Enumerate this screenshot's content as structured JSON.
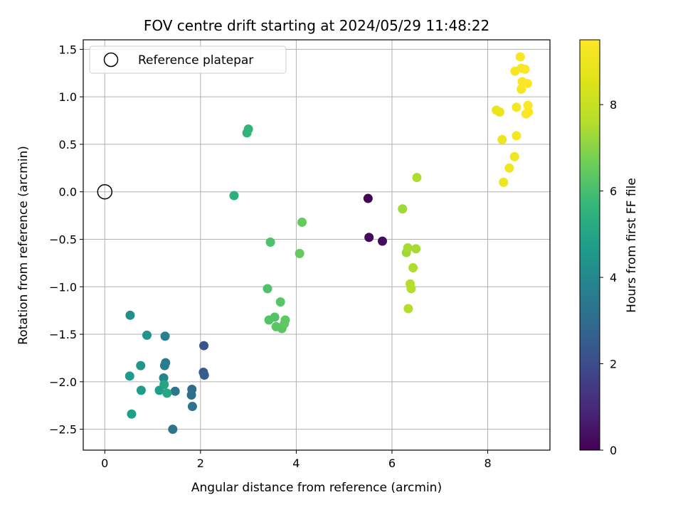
{
  "chart_data": {
    "type": "scatter",
    "title": "FOV centre drift starting at 2024/05/29 11:48:22",
    "xlabel": "Angular distance from reference (arcmin)",
    "ylabel": "Rotation from reference (arcmin)",
    "xlim": [
      -0.45,
      9.3
    ],
    "ylim": [
      -2.72,
      1.6
    ],
    "xticks": [
      0,
      2,
      4,
      6,
      8
    ],
    "xtick_labels": [
      "0",
      "2",
      "4",
      "6",
      "8"
    ],
    "yticks": [
      -2.5,
      -2.0,
      -1.5,
      -1.0,
      -0.5,
      0.0,
      0.5,
      1.0,
      1.5
    ],
    "ytick_labels": [
      "−2.5",
      "−2.0",
      "−1.5",
      "−1.0",
      "−0.5",
      "0.0",
      "0.5",
      "1.0",
      "1.5"
    ],
    "grid": true,
    "legend": {
      "placement": "top-left",
      "entries": [
        "Reference platepar"
      ]
    },
    "reference_point": {
      "x": 0,
      "y": 0
    },
    "colorbar": {
      "label": "Hours from first FF file",
      "colormap": "viridis",
      "range": [
        0,
        9.5
      ],
      "ticks": [
        0,
        2,
        4,
        6,
        8
      ],
      "tick_labels": [
        "0",
        "2",
        "4",
        "6",
        "8"
      ]
    },
    "points": [
      {
        "x": 5.5,
        "y": -0.07,
        "c": 0.1
      },
      {
        "x": 5.52,
        "y": -0.48,
        "c": 0.2
      },
      {
        "x": 5.8,
        "y": -0.52,
        "c": 0.3
      },
      {
        "x": 2.07,
        "y": -1.62,
        "c": 2.2
      },
      {
        "x": 2.06,
        "y": -1.9,
        "c": 2.4
      },
      {
        "x": 2.08,
        "y": -1.93,
        "c": 2.5
      },
      {
        "x": 1.82,
        "y": -2.08,
        "c": 3.0
      },
      {
        "x": 1.81,
        "y": -2.14,
        "c": 3.1
      },
      {
        "x": 1.83,
        "y": -2.26,
        "c": 3.2
      },
      {
        "x": 1.42,
        "y": -2.5,
        "c": 3.3
      },
      {
        "x": 1.47,
        "y": -2.1,
        "c": 3.4
      },
      {
        "x": 1.27,
        "y": -1.8,
        "c": 3.5
      },
      {
        "x": 1.25,
        "y": -1.83,
        "c": 3.6
      },
      {
        "x": 1.26,
        "y": -1.52,
        "c": 3.8
      },
      {
        "x": 1.23,
        "y": -1.96,
        "c": 3.9
      },
      {
        "x": 0.53,
        "y": -1.3,
        "c": 4.2
      },
      {
        "x": 0.88,
        "y": -1.51,
        "c": 4.4
      },
      {
        "x": 0.75,
        "y": -1.83,
        "c": 4.5
      },
      {
        "x": 0.52,
        "y": -1.94,
        "c": 4.6
      },
      {
        "x": 0.76,
        "y": -2.09,
        "c": 4.7
      },
      {
        "x": 0.56,
        "y": -2.34,
        "c": 4.8
      },
      {
        "x": 1.14,
        "y": -2.09,
        "c": 4.8
      },
      {
        "x": 1.24,
        "y": -2.03,
        "c": 5.0
      },
      {
        "x": 1.3,
        "y": -2.12,
        "c": 5.1
      },
      {
        "x": 2.7,
        "y": -0.04,
        "c": 5.4
      },
      {
        "x": 2.97,
        "y": 0.62,
        "c": 5.6
      },
      {
        "x": 3.0,
        "y": 0.66,
        "c": 5.6
      },
      {
        "x": 3.4,
        "y": -1.02,
        "c": 6.1
      },
      {
        "x": 3.46,
        "y": -0.53,
        "c": 6.1
      },
      {
        "x": 3.43,
        "y": -1.35,
        "c": 6.2
      },
      {
        "x": 3.55,
        "y": -1.32,
        "c": 6.2
      },
      {
        "x": 3.58,
        "y": -1.42,
        "c": 6.3
      },
      {
        "x": 3.67,
        "y": -1.16,
        "c": 6.3
      },
      {
        "x": 3.7,
        "y": -1.44,
        "c": 6.3
      },
      {
        "x": 3.75,
        "y": -1.39,
        "c": 6.4
      },
      {
        "x": 3.77,
        "y": -1.35,
        "c": 6.4
      },
      {
        "x": 4.07,
        "y": -0.65,
        "c": 6.5
      },
      {
        "x": 4.12,
        "y": -0.32,
        "c": 6.5
      },
      {
        "x": 6.22,
        "y": -0.18,
        "c": 7.3
      },
      {
        "x": 6.3,
        "y": -0.64,
        "c": 7.3
      },
      {
        "x": 6.33,
        "y": -0.59,
        "c": 7.4
      },
      {
        "x": 6.5,
        "y": -0.6,
        "c": 7.4
      },
      {
        "x": 6.52,
        "y": 0.15,
        "c": 7.5
      },
      {
        "x": 6.44,
        "y": -0.8,
        "c": 7.5
      },
      {
        "x": 6.38,
        "y": -0.97,
        "c": 7.6
      },
      {
        "x": 6.4,
        "y": -1.02,
        "c": 7.6
      },
      {
        "x": 6.34,
        "y": -1.23,
        "c": 7.6
      },
      {
        "x": 8.18,
        "y": 0.86,
        "c": 8.9
      },
      {
        "x": 8.25,
        "y": 0.84,
        "c": 8.9
      },
      {
        "x": 8.3,
        "y": 0.55,
        "c": 9.0
      },
      {
        "x": 8.33,
        "y": 0.1,
        "c": 9.0
      },
      {
        "x": 8.45,
        "y": 0.25,
        "c": 9.1
      },
      {
        "x": 8.56,
        "y": 0.37,
        "c": 9.1
      },
      {
        "x": 8.57,
        "y": 1.27,
        "c": 9.2
      },
      {
        "x": 8.6,
        "y": 0.59,
        "c": 9.2
      },
      {
        "x": 8.6,
        "y": 0.89,
        "c": 9.2
      },
      {
        "x": 8.68,
        "y": 1.42,
        "c": 9.3
      },
      {
        "x": 8.7,
        "y": 1.3,
        "c": 9.3
      },
      {
        "x": 8.7,
        "y": 1.08,
        "c": 9.3
      },
      {
        "x": 8.72,
        "y": 1.16,
        "c": 9.4
      },
      {
        "x": 8.78,
        "y": 1.29,
        "c": 9.4
      },
      {
        "x": 8.8,
        "y": 0.82,
        "c": 9.4
      },
      {
        "x": 8.83,
        "y": 1.14,
        "c": 9.5
      },
      {
        "x": 8.84,
        "y": 0.91,
        "c": 9.5
      },
      {
        "x": 8.85,
        "y": 0.84,
        "c": 9.5
      }
    ]
  }
}
